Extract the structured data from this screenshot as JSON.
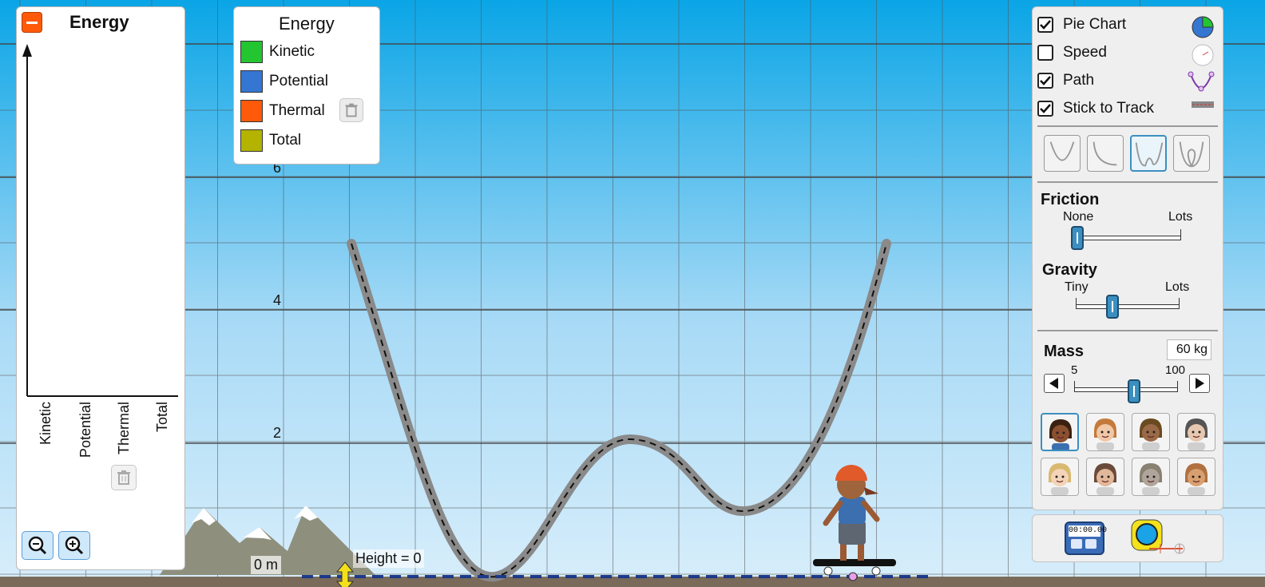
{
  "colors": {
    "sky_top": "#0aa5e6",
    "sky_bottom": "#d8eefb",
    "grid": "#555555",
    "kinetic": "#23c531",
    "potential": "#3476d2",
    "thermal": "#ff5a0a",
    "total": "#b3b300",
    "track": "#888888",
    "slider_thumb": "#3b8fc0",
    "ground": "#7a6a5a"
  },
  "energy_graph": {
    "title": "Energy",
    "minimize_icon": "minus-icon",
    "bars": [
      "Kinetic",
      "Potential",
      "Thermal",
      "Total"
    ],
    "clear_icon": "trash-icon",
    "zoom_out_icon": "zoom-out-icon",
    "zoom_in_icon": "zoom-in-icon"
  },
  "legend": {
    "title": "Energy",
    "items": [
      {
        "label": "Kinetic",
        "color": "#23c531"
      },
      {
        "label": "Potential",
        "color": "#3476d2"
      },
      {
        "label": "Thermal",
        "color": "#ff5a0a"
      },
      {
        "label": "Total",
        "color": "#b3b300"
      }
    ],
    "clear_icon": "trash-icon"
  },
  "grid_labels": {
    "six": "6",
    "four": "4",
    "two": "2",
    "zero": "0 m"
  },
  "height_readout": "Height = 0",
  "options": [
    {
      "label": "Pie Chart",
      "checked": true,
      "icon": "pie-chart-icon"
    },
    {
      "label": "Speed",
      "checked": false,
      "icon": "speedometer-icon"
    },
    {
      "label": "Path",
      "checked": true,
      "icon": "path-icon"
    },
    {
      "label": "Stick to Track",
      "checked": true,
      "icon": "track-icon"
    }
  ],
  "track_shapes": {
    "items": [
      "parabola-track-icon",
      "ramp-track-icon",
      "double-well-track-icon",
      "loop-track-icon"
    ],
    "selected": 2
  },
  "friction": {
    "title": "Friction",
    "min": "None",
    "max": "Lots",
    "value": 0.0
  },
  "gravity": {
    "title": "Gravity",
    "min": "Tiny",
    "max": "Lots",
    "value": 0.35
  },
  "mass": {
    "title": "Mass",
    "value_text": "60 kg",
    "min": "5",
    "max": "100",
    "value": 0.58
  },
  "characters": {
    "items": [
      "girl-skater-avatar",
      "boy-skater-avatar",
      "woman-skater-avatar",
      "man-skater-avatar",
      "blonde-skater-avatar",
      "kid-skater-avatar",
      "cat-avatar",
      "dog-avatar"
    ],
    "selected": 0
  },
  "tools": {
    "stopwatch_text": "00:00.00",
    "stopwatch_icon": "stopwatch-icon",
    "tape_icon": "measuring-tape-icon"
  }
}
